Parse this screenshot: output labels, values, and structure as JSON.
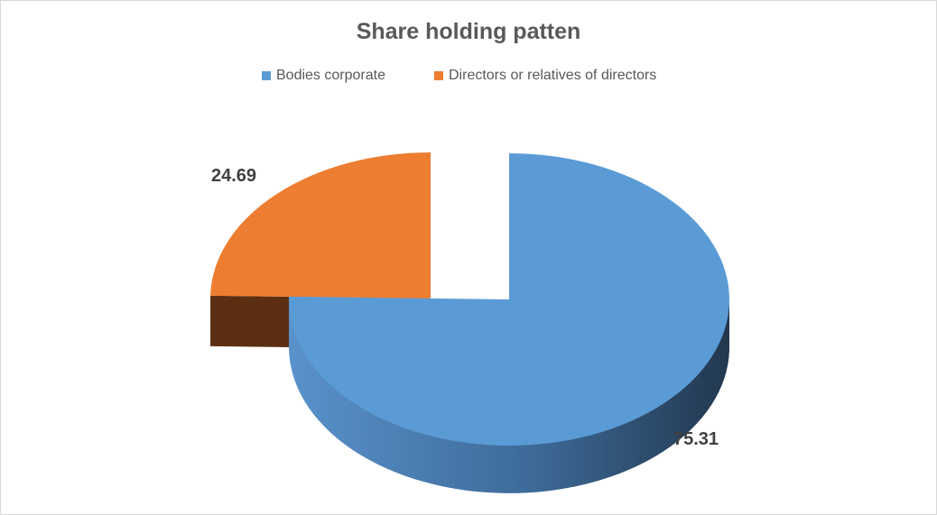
{
  "chart_data": {
    "type": "pie",
    "title": "Share holding patten",
    "slices": [
      {
        "name": "Bodies corporate",
        "value": 75.31,
        "label": "75.31",
        "color": "#5b9bd5"
      },
      {
        "name": "Directors or relatives of directors",
        "value": 24.69,
        "label": "24.69",
        "color": "#ed7d31"
      }
    ],
    "legend_position": "top",
    "style": "3d-exploded"
  }
}
